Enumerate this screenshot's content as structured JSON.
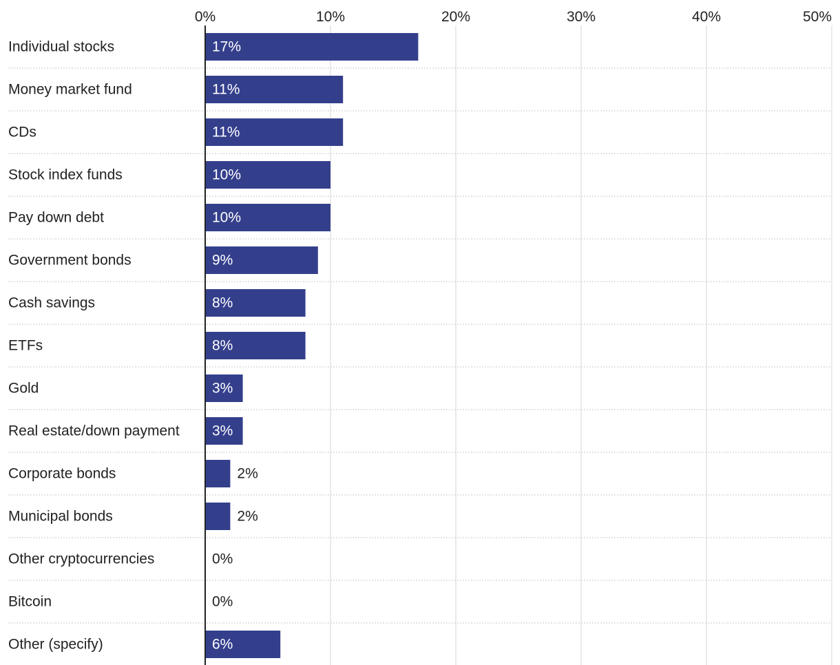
{
  "chart_data": {
    "type": "bar",
    "orientation": "horizontal",
    "title": "",
    "xlabel": "",
    "ylabel": "",
    "xlim": [
      0,
      50
    ],
    "tick_values": [
      0,
      10,
      20,
      30,
      40,
      50
    ],
    "tick_labels": [
      "0%",
      "10%",
      "20%",
      "30%",
      "40%",
      "50%"
    ],
    "categories": [
      "Individual stocks",
      "Money market fund",
      "CDs",
      "Stock index funds",
      "Pay down debt",
      "Government bonds",
      "Cash savings",
      "ETFs",
      "Gold",
      "Real estate/down payment",
      "Corporate bonds",
      "Municipal bonds",
      "Other cryptocurrencies",
      "Bitcoin",
      "Other (specify)"
    ],
    "values": [
      17,
      11,
      11,
      10,
      10,
      9,
      8,
      8,
      3,
      3,
      2,
      2,
      0,
      0,
      6
    ],
    "value_labels": [
      "17%",
      "11%",
      "11%",
      "10%",
      "10%",
      "9%",
      "8%",
      "8%",
      "3%",
      "3%",
      "2%",
      "2%",
      "0%",
      "0%",
      "6%"
    ],
    "grid": true,
    "colors": {
      "bar": "#343f8c",
      "label_inside": "#ffffff",
      "label_outside": "#222222",
      "gridline": "#e3e3e3",
      "row_separator": "#c9c9c9",
      "axis": "#222222"
    }
  }
}
